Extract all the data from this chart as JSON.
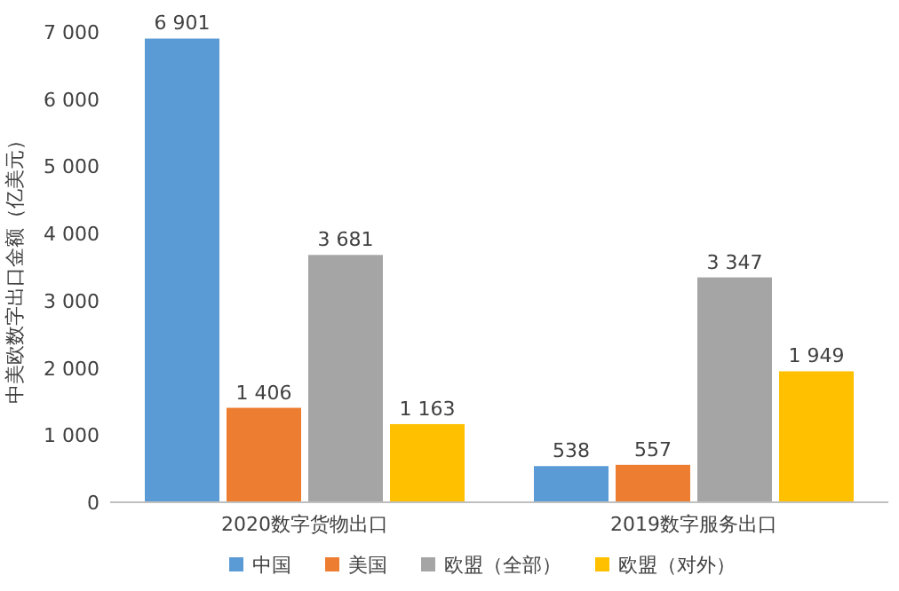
{
  "chart_data": {
    "type": "bar",
    "ylabel": "中美欧数字出口金额（亿美元）",
    "categories": [
      "2020数字货物出口",
      "2019数字服务出口"
    ],
    "ylim": [
      0,
      7000
    ],
    "yticks": [
      0,
      {
        "value": 1000,
        "label": "1 000"
      },
      {
        "value": 2000,
        "label": "2 000"
      },
      {
        "value": 3000,
        "label": "3 000"
      },
      {
        "value": 4000,
        "label": "4 000"
      },
      {
        "value": 5000,
        "label": "5 000"
      },
      {
        "value": 6000,
        "label": "6 000"
      },
      {
        "value": 7000,
        "label": "7 000"
      }
    ],
    "legend": "bottom",
    "grid": false,
    "series": [
      {
        "name": "中国",
        "color": "#5b9bd5",
        "values": [
          6901,
          538
        ],
        "value_labels": [
          "6 901",
          "538"
        ]
      },
      {
        "name": "美国",
        "color": "#ed7d31",
        "values": [
          1406,
          557
        ],
        "value_labels": [
          "1 406",
          "557"
        ]
      },
      {
        "name": "欧盟（全部）",
        "color": "#a5a5a5",
        "values": [
          3681,
          3347
        ],
        "value_labels": [
          "3 681",
          "3 347"
        ]
      },
      {
        "name": "欧盟（对外）",
        "color": "#ffc000",
        "values": [
          1163,
          1949
        ],
        "value_labels": [
          "1 163",
          "1 949"
        ]
      }
    ]
  }
}
